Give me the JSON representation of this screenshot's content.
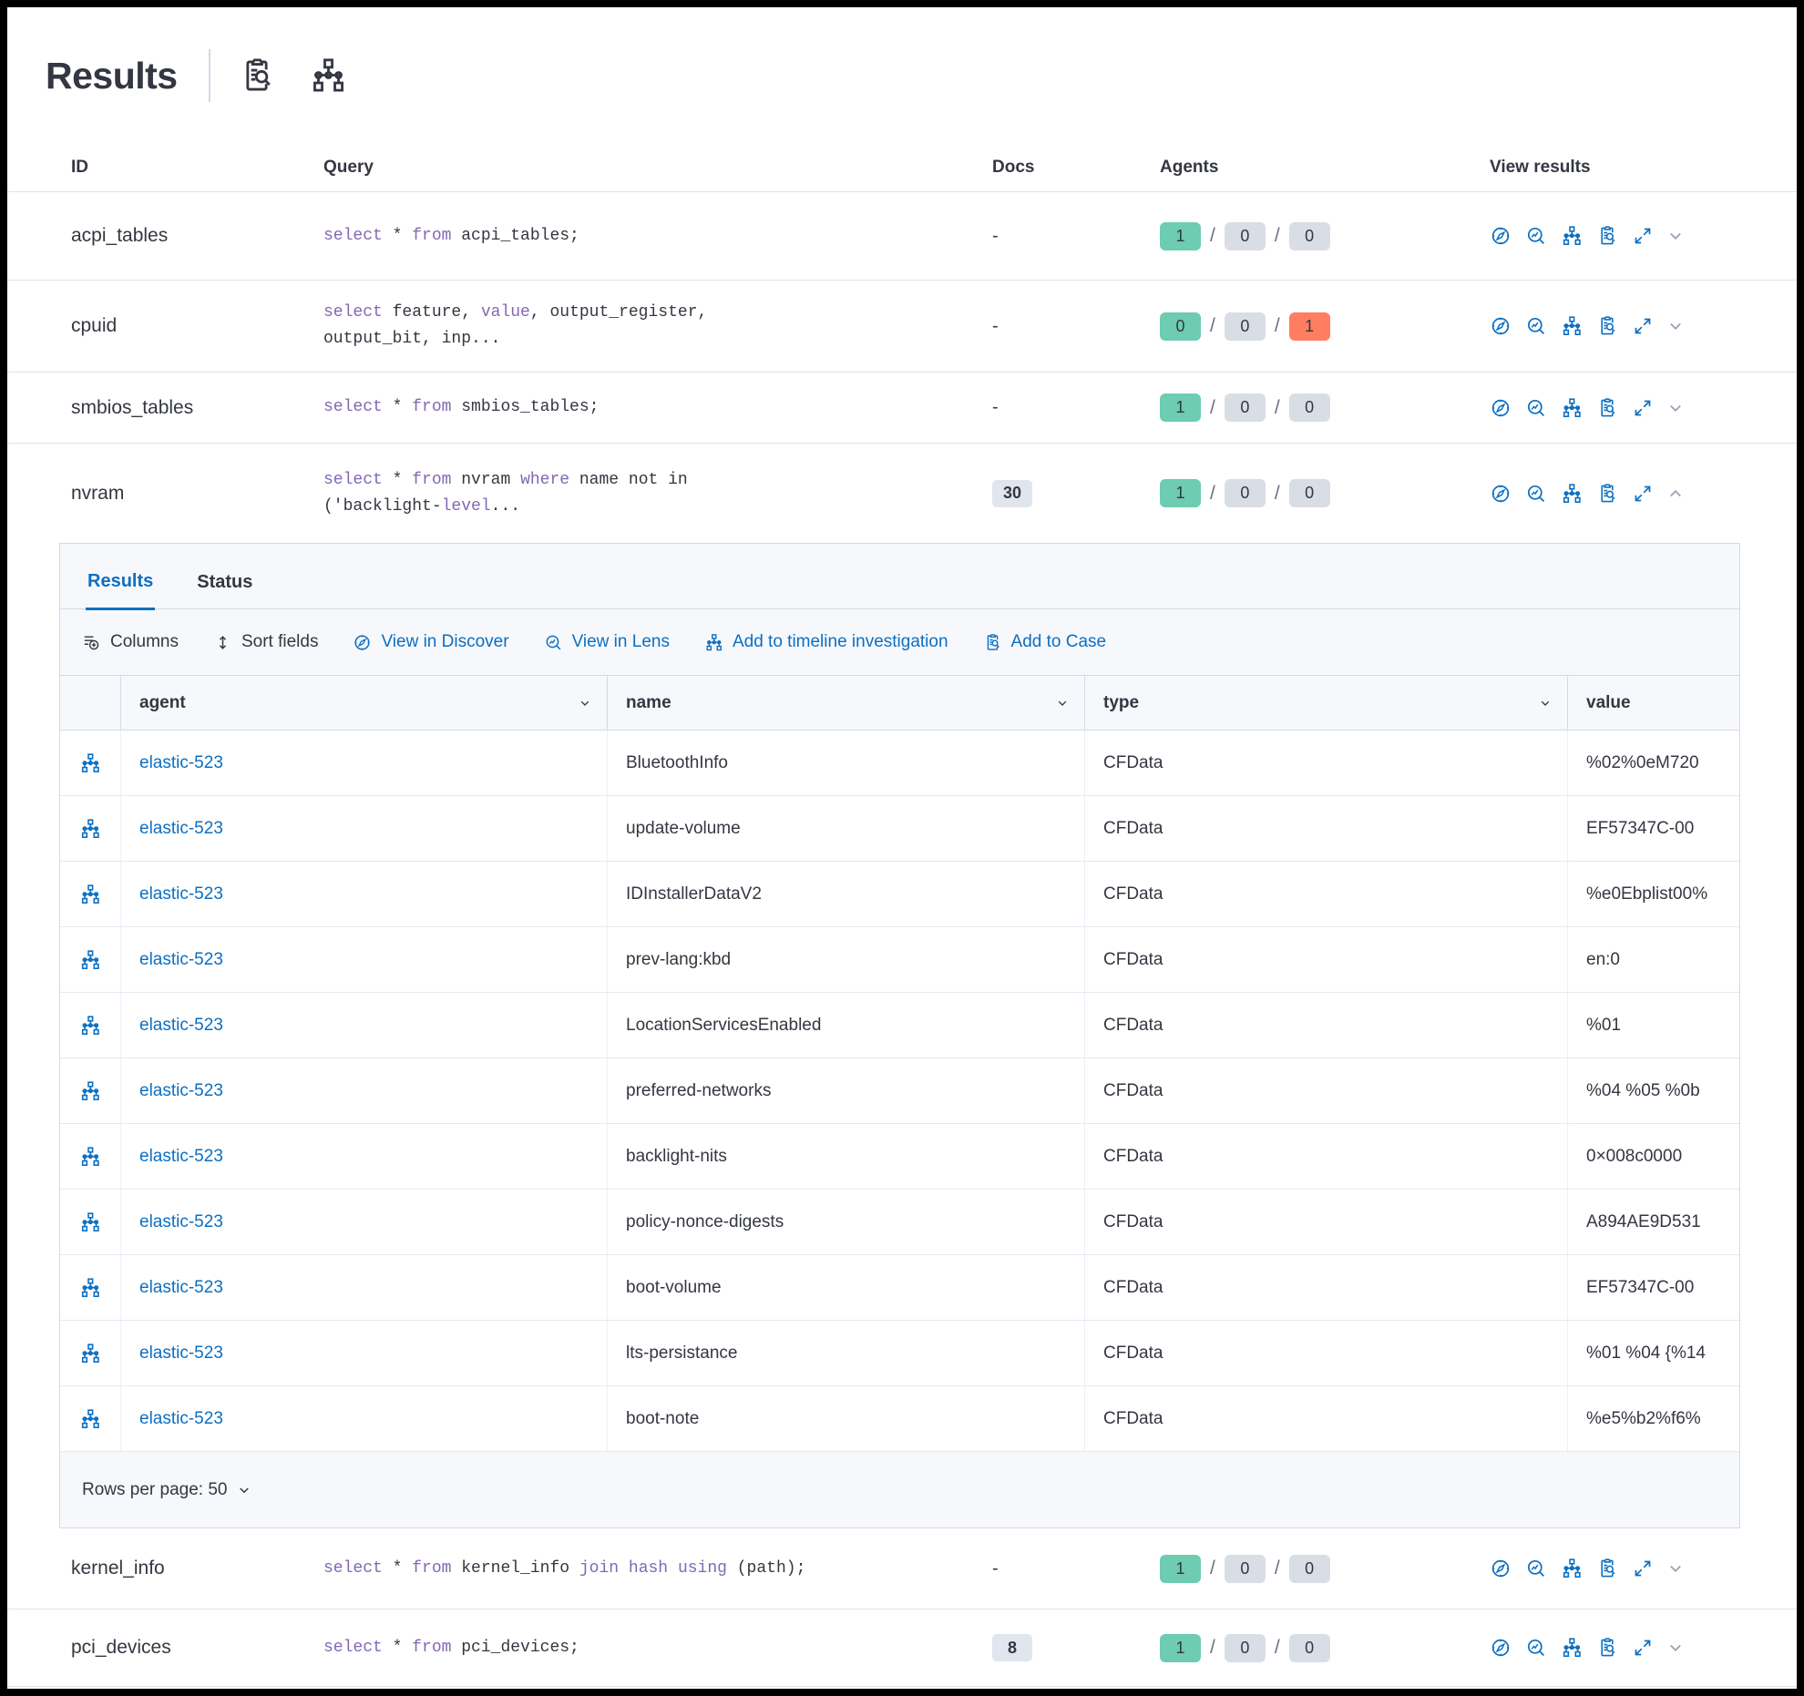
{
  "colors": {
    "accent_blue": "#0b6fc2",
    "badge_green": "#6dccb1",
    "badge_grey": "#d9dde6",
    "badge_red": "#ff7e62",
    "code_keyword_purple": "#8268b4",
    "text_dark": "#343741"
  },
  "header": {
    "title": "Results"
  },
  "results_table": {
    "headers": {
      "id": "ID",
      "query": "Query",
      "docs": "Docs",
      "agents": "Agents",
      "view": "View results"
    },
    "rows_top": [
      {
        "id": "acpi_tables",
        "query_lines": [
          [
            [
              "select",
              1
            ],
            [
              " * ",
              0
            ],
            [
              "from",
              1
            ],
            [
              " acpi_tables;",
              0
            ]
          ]
        ],
        "docs": "-",
        "docs_badge": false,
        "agents": [
          [
            "1",
            "green"
          ],
          [
            "0",
            "grey"
          ],
          [
            "0",
            "grey"
          ]
        ],
        "expanded": false
      },
      {
        "id": "cpuid",
        "query_lines": [
          [
            [
              "select",
              1
            ],
            [
              " feature, ",
              0
            ],
            [
              "value",
              1
            ],
            [
              ", output_register,",
              0
            ]
          ],
          [
            [
              "output_bit, inp...",
              0
            ]
          ]
        ],
        "docs": "-",
        "docs_badge": false,
        "agents": [
          [
            "0",
            "green"
          ],
          [
            "0",
            "grey"
          ],
          [
            "1",
            "red"
          ]
        ],
        "expanded": false
      },
      {
        "id": "smbios_tables",
        "query_lines": [
          [
            [
              "select",
              1
            ],
            [
              " * ",
              0
            ],
            [
              "from",
              1
            ],
            [
              " smbios_tables;",
              0
            ]
          ]
        ],
        "docs": "-",
        "docs_badge": false,
        "agents": [
          [
            "1",
            "green"
          ],
          [
            "0",
            "grey"
          ],
          [
            "0",
            "grey"
          ]
        ],
        "expanded": false
      },
      {
        "id": "nvram",
        "query_lines": [
          [
            [
              "select",
              1
            ],
            [
              " * ",
              0
            ],
            [
              "from",
              1
            ],
            [
              " nvram ",
              0
            ],
            [
              "where",
              1
            ],
            [
              " name not in",
              0
            ]
          ],
          [
            [
              "('backlight-",
              0
            ],
            [
              "level",
              1
            ],
            [
              "...",
              0
            ]
          ]
        ],
        "docs": "30",
        "docs_badge": true,
        "agents": [
          [
            "1",
            "green"
          ],
          [
            "0",
            "grey"
          ],
          [
            "0",
            "grey"
          ]
        ],
        "expanded": true
      }
    ],
    "rows_bottom": [
      {
        "id": "kernel_info",
        "query_lines": [
          [
            [
              "select",
              1
            ],
            [
              " * ",
              0
            ],
            [
              "from",
              1
            ],
            [
              " kernel_info ",
              0
            ],
            [
              "join",
              1
            ],
            [
              " ",
              0
            ],
            [
              "hash",
              1
            ],
            [
              " ",
              0
            ],
            [
              "using",
              1
            ],
            [
              " (path);",
              0
            ]
          ]
        ],
        "docs": "-",
        "docs_badge": false,
        "agents": [
          [
            "1",
            "green"
          ],
          [
            "0",
            "grey"
          ],
          [
            "0",
            "grey"
          ]
        ],
        "expanded": false
      },
      {
        "id": "pci_devices",
        "query_lines": [
          [
            [
              "select",
              1
            ],
            [
              " * ",
              0
            ],
            [
              "from",
              1
            ],
            [
              " pci_devices;",
              0
            ]
          ]
        ],
        "docs": "8",
        "docs_badge": true,
        "agents": [
          [
            "1",
            "green"
          ],
          [
            "0",
            "grey"
          ],
          [
            "0",
            "grey"
          ]
        ],
        "expanded": false
      }
    ]
  },
  "details_panel": {
    "tabs": [
      {
        "label": "Results"
      },
      {
        "label": "Status"
      }
    ],
    "toolbar": [
      {
        "label": "Columns"
      },
      {
        "label": "Sort fields"
      },
      {
        "label": "View in Discover"
      },
      {
        "label": "View in Lens"
      },
      {
        "label": "Add to timeline investigation"
      },
      {
        "label": "Add to Case"
      }
    ],
    "grid": {
      "headers": [
        "agent",
        "name",
        "type",
        "value"
      ],
      "rows": [
        {
          "agent": "elastic-523",
          "name": "BluetoothInfo",
          "type": "CFData",
          "value": "%02%0eM720"
        },
        {
          "agent": "elastic-523",
          "name": "update-volume",
          "type": "CFData",
          "value": "EF57347C-00"
        },
        {
          "agent": "elastic-523",
          "name": "IDInstallerDataV2",
          "type": "CFData",
          "value": "%e0Ebplist00%"
        },
        {
          "agent": "elastic-523",
          "name": "prev-lang:kbd",
          "type": "CFData",
          "value": "en:0"
        },
        {
          "agent": "elastic-523",
          "name": "LocationServicesEnabled",
          "type": "CFData",
          "value": "%01"
        },
        {
          "agent": "elastic-523",
          "name": "preferred-networks",
          "type": "CFData",
          "value": "%04 %05 %0b"
        },
        {
          "agent": "elastic-523",
          "name": "backlight-nits",
          "type": "CFData",
          "value": "0×008c0000"
        },
        {
          "agent": "elastic-523",
          "name": "policy-nonce-digests",
          "type": "CFData",
          "value": "A894AE9D531"
        },
        {
          "agent": "elastic-523",
          "name": "boot-volume",
          "type": "CFData",
          "value": "EF57347C-00"
        },
        {
          "agent": "elastic-523",
          "name": "lts-persistance",
          "type": "CFData",
          "value": "%01 %04 {%14"
        },
        {
          "agent": "elastic-523",
          "name": "boot-note",
          "type": "CFData",
          "value": "%e5%b2%f6%"
        }
      ]
    },
    "footer": {
      "rows_per_page": "Rows per page: 50"
    }
  }
}
